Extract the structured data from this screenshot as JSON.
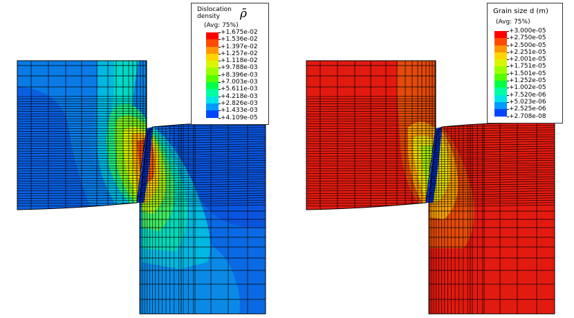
{
  "panels": [
    {
      "id": "left",
      "legend": {
        "title_lines": [
          "Dislocation",
          "density"
        ],
        "symbol": "ρ̄",
        "avg": "(Avg: 75%)",
        "labels": [
          "+1.675e-02",
          "+1.536e-02",
          "+1.397e-02",
          "+1.257e-02",
          "+1.118e-02",
          "+9.788e-03",
          "+8.396e-03",
          "+7.003e-03",
          "+5.611e-03",
          "+4.218e-03",
          "+2.826e-03",
          "+1.433e-03",
          "+4.109e-05"
        ]
      }
    },
    {
      "id": "right",
      "legend": {
        "title_lines": [
          "Grain size d (m)"
        ],
        "avg": "(Avg: 75%)",
        "labels": [
          "+3.000e-05",
          "+2.750e-05",
          "+2.500e-05",
          "+2.251e-05",
          "+2.001e-05",
          "+1.751e-05",
          "+1.501e-05",
          "+1.252e-05",
          "+1.002e-05",
          "+7.520e-06",
          "+5.023e-06",
          "+2.525e-06",
          "+2.708e-08"
        ]
      }
    }
  ],
  "colormap": [
    "#ff0000",
    "#ff4a00",
    "#ff9500",
    "#ffd400",
    "#d9f500",
    "#9bff00",
    "#54ff00",
    "#00ff47",
    "#00ffa0",
    "#00e6e6",
    "#009bff",
    "#0046ff",
    "#0000ff"
  ]
}
